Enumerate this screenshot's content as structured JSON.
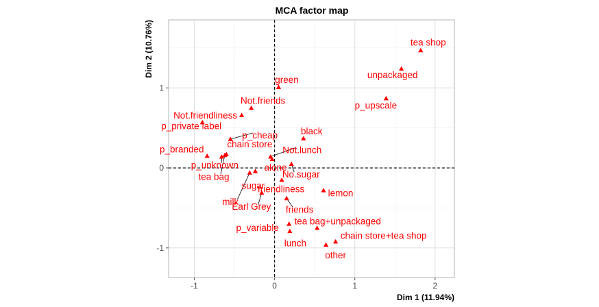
{
  "chart_data": {
    "type": "scatter",
    "title": "MCA factor map",
    "xlabel": "Dim 1 (11.94%)",
    "ylabel": "Dim 2 (10.76%)",
    "xlim": [
      -1.32,
      2.24
    ],
    "ylim": [
      -1.37,
      1.85
    ],
    "xticks": [
      -1,
      0,
      1,
      2
    ],
    "yticks": [
      -1,
      0,
      1
    ],
    "grid": true,
    "marker": "triangle",
    "point_color": "#ff0000",
    "points": [
      {
        "label": "tea shop",
        "x": 1.82,
        "y": 1.47
      },
      {
        "label": "unpackaged",
        "x": 1.58,
        "y": 1.24
      },
      {
        "label": "p_upscale",
        "x": 1.39,
        "y": 0.87
      },
      {
        "label": "green",
        "x": 0.05,
        "y": 1.01
      },
      {
        "label": "Not.friends",
        "x": -0.29,
        "y": 0.75
      },
      {
        "label": "Not.friendliness",
        "x": -0.41,
        "y": 0.66
      },
      {
        "label": "p_private label",
        "x": -0.9,
        "y": 0.57
      },
      {
        "label": "p_cheap",
        "x": -0.55,
        "y": 0.36
      },
      {
        "label": "black",
        "x": 0.36,
        "y": 0.37
      },
      {
        "label": "p_branded",
        "x": -0.84,
        "y": 0.15
      },
      {
        "label": "chain store",
        "x": -0.6,
        "y": 0.17
      },
      {
        "label": "Not.lunch",
        "x": -0.05,
        "y": 0.14
      },
      {
        "label": "p_unknown",
        "x": -0.66,
        "y": 0.14
      },
      {
        "label": "tea bag",
        "x": -0.62,
        "y": 0.16
      },
      {
        "label": "alone",
        "x": -0.03,
        "y": 0.11
      },
      {
        "label": "No.sugar",
        "x": 0.21,
        "y": 0.05
      },
      {
        "label": "sugar",
        "x": -0.24,
        "y": -0.04
      },
      {
        "label": "milk",
        "x": -0.31,
        "y": -0.06
      },
      {
        "label": "friendliness",
        "x": 0.09,
        "y": -0.15
      },
      {
        "label": "lemon",
        "x": 0.61,
        "y": -0.28
      },
      {
        "label": "Earl Grey",
        "x": -0.16,
        "y": -0.31
      },
      {
        "label": "friends",
        "x": 0.15,
        "y": -0.38
      },
      {
        "label": "p_variable",
        "x": 0.18,
        "y": -0.7
      },
      {
        "label": "tea bag+unpackaged",
        "x": 0.53,
        "y": -0.75
      },
      {
        "label": "lunch",
        "x": 0.19,
        "y": -0.79
      },
      {
        "label": "chain store+tea shop",
        "x": 0.76,
        "y": -0.92
      },
      {
        "label": "other",
        "x": 0.64,
        "y": -0.96
      }
    ]
  }
}
